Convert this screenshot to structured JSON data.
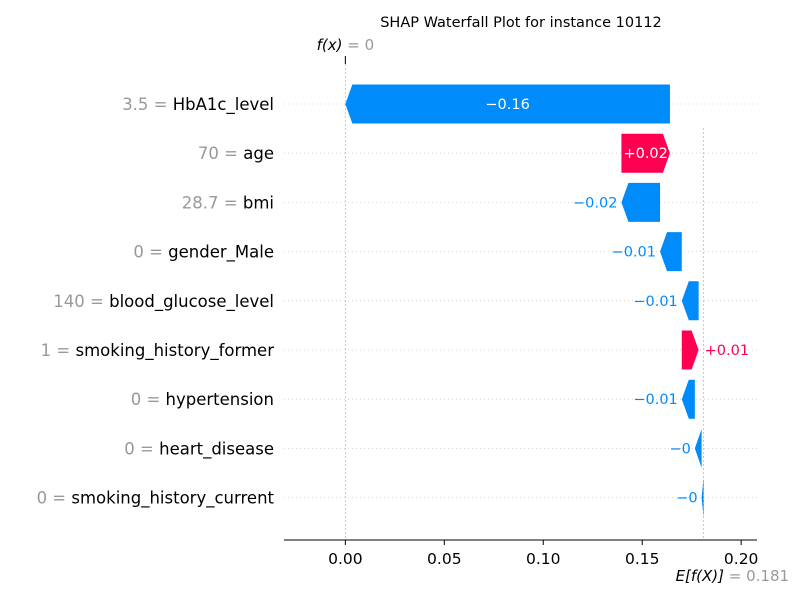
{
  "chart_data": {
    "type": "waterfall",
    "title": "SHAP Waterfall Plot for instance 10112",
    "fx_label": "f(x)",
    "fx_value": "0",
    "ex_label": "E[f(X)]",
    "ex_value": "0.181",
    "base_value": 0.181,
    "output_value": 0.0,
    "xlim": [
      -0.031,
      0.208
    ],
    "xticks": [
      0.0,
      0.05,
      0.1,
      0.15,
      0.2
    ],
    "xtick_labels": [
      "0.00",
      "0.05",
      "0.10",
      "0.15",
      "0.20"
    ],
    "colors": {
      "negative": "#008bfb",
      "positive": "#ff0051",
      "feature_value": "#999999",
      "grid": "#cccccc"
    },
    "features": [
      {
        "value": "3.5",
        "name": "HbA1c_level",
        "shap": -0.164,
        "start": 0.164,
        "end": 0.0,
        "label": "−0.16",
        "label_inside": true
      },
      {
        "value": "70",
        "name": "age",
        "shap": 0.0245,
        "start": 0.1395,
        "end": 0.164,
        "label": "+0.02",
        "label_inside": true
      },
      {
        "value": "28.7",
        "name": "bmi",
        "shap": -0.0195,
        "start": 0.159,
        "end": 0.1395,
        "label": "−0.02",
        "label_inside": false
      },
      {
        "value": "0",
        "name": "gender_Male",
        "shap": -0.011,
        "start": 0.17,
        "end": 0.159,
        "label": "−0.01",
        "label_inside": false
      },
      {
        "value": "140",
        "name": "blood_glucose_level",
        "shap": -0.0085,
        "start": 0.1785,
        "end": 0.17,
        "label": "−0.01",
        "label_inside": false
      },
      {
        "value": "1",
        "name": "smoking_history_former",
        "shap": 0.0085,
        "start": 0.17,
        "end": 0.1785,
        "label": "+0.01",
        "label_inside": false
      },
      {
        "value": "0",
        "name": "hypertension",
        "shap": -0.0066,
        "start": 0.1766,
        "end": 0.17,
        "label": "−0.01",
        "label_inside": false
      },
      {
        "value": "0",
        "name": "heart_disease",
        "shap": -0.0034,
        "start": 0.18,
        "end": 0.1766,
        "label": "−0",
        "label_inside": false
      },
      {
        "value": "0",
        "name": "smoking_history_current",
        "shap": -0.001,
        "start": 0.181,
        "end": 0.18,
        "label": "−0",
        "label_inside": false
      }
    ]
  }
}
